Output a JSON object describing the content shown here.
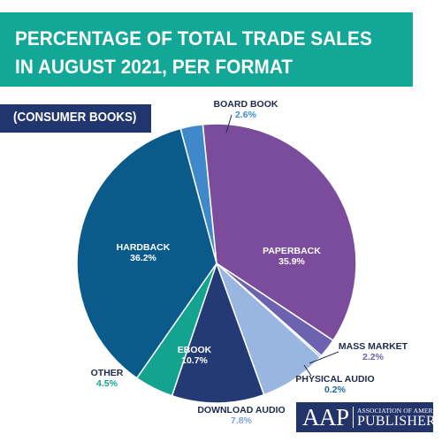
{
  "chart_data": {
    "type": "pie",
    "title_lines": [
      "PERCENTAGE OF TOTAL TRADE SALES",
      "IN AUGUST 2021, PER FORMAT"
    ],
    "subtitle": "(CONSUMER BOOKS)",
    "slices": [
      {
        "label": "BOARD BOOK",
        "value": 2.6,
        "value_label": "2.6%",
        "color": "#3f88c9"
      },
      {
        "label": "PAPERBACK",
        "value": 35.9,
        "value_label": "35.9%",
        "color": "#7c4c9c"
      },
      {
        "label": "MASS MARKET",
        "value": 2.2,
        "value_label": "2.2%",
        "color": "#6c62b0"
      },
      {
        "label": "PHYSICAL AUDIO",
        "value": 0.2,
        "value_label": "0.2%",
        "color": "#1d6a9f"
      },
      {
        "label": "DOWNLOAD AUDIO",
        "value": 7.8,
        "value_label": "7.8%",
        "color": "#98b6df"
      },
      {
        "label": "EBOOK",
        "value": 10.7,
        "value_label": "10.7%",
        "color": "#243a75"
      },
      {
        "label": "OTHER",
        "value": 4.5,
        "value_label": "4.5%",
        "color": "#14a38f"
      },
      {
        "label": "HARDBACK",
        "value": 36.2,
        "value_label": "36.2%",
        "color": "#0b5a8c"
      }
    ]
  },
  "colors": {
    "title_banner": "#12a796",
    "subtitle_box": "#21366e",
    "logo_box": "#23346b",
    "label_dark": "#1f2a4a",
    "inside_label": "#ffffff"
  },
  "logo": {
    "mark": "AAP",
    "line1": "ASSOCIATION OF AMERICAN",
    "line2": "PUBLISHERS"
  }
}
